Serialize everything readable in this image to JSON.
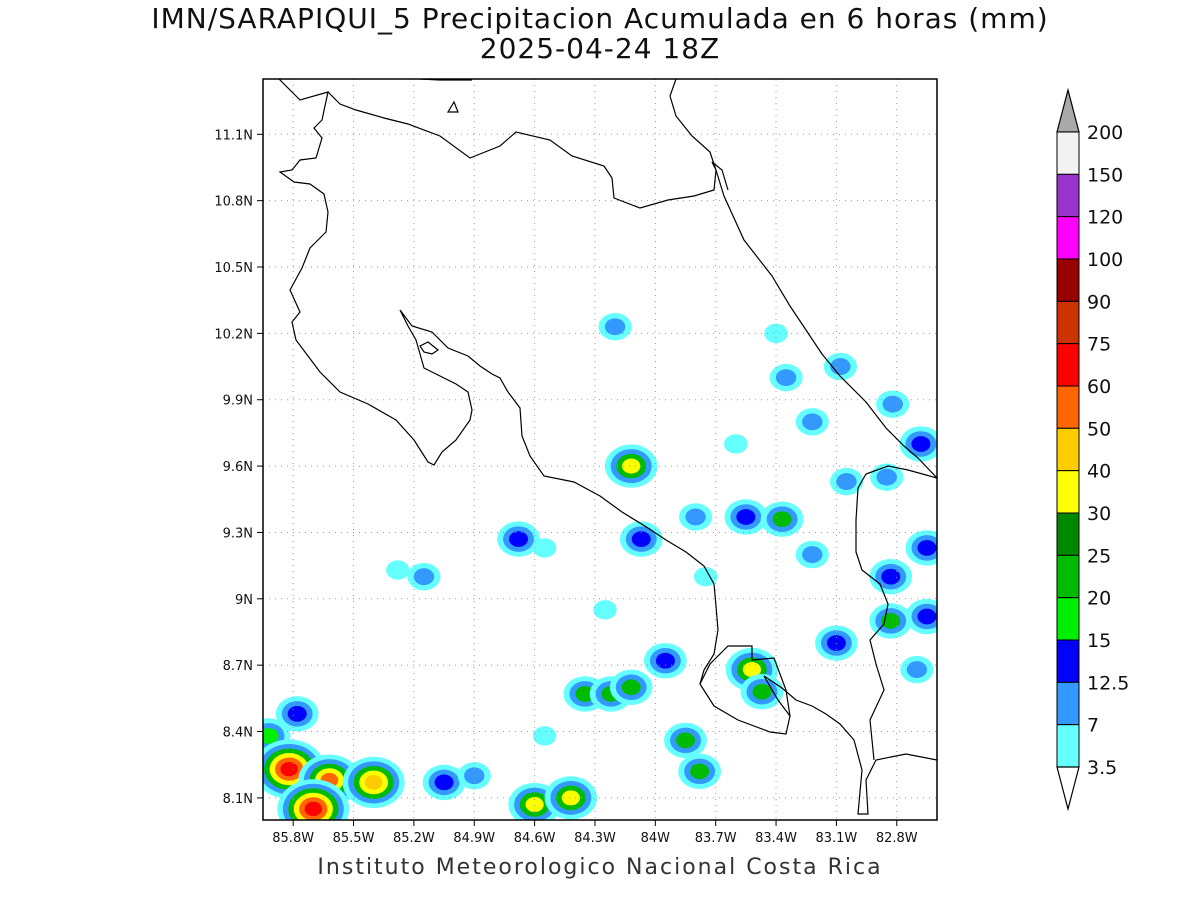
{
  "title": "IMN/SARAPIQUI_5 Precipitacion Acumulada en 6 horas (mm)",
  "subtitle": "2025-04-24 18Z",
  "footer": "Instituto Meteorologico Nacional Costa Rica",
  "map": {
    "lon_range": [
      -85.95,
      -82.6
    ],
    "lat_range": [
      8.0,
      11.35
    ],
    "lon_ticks": [
      "85.8W",
      "85.5W",
      "85.2W",
      "84.9W",
      "84.6W",
      "84.3W",
      "84W",
      "83.7W",
      "83.4W",
      "83.1W",
      "82.8W"
    ],
    "lat_ticks": [
      "11.1N",
      "10.8N",
      "10.5N",
      "10.2N",
      "9.9N",
      "9.6N",
      "9.3N",
      "9N",
      "8.7N",
      "8.4N",
      "8.1N"
    ],
    "grid": "dotted"
  },
  "legend": {
    "labels": [
      "200",
      "150",
      "120",
      "100",
      "90",
      "75",
      "60",
      "50",
      "40",
      "30",
      "25",
      "20",
      "15",
      "12.5",
      "7",
      "3.5"
    ],
    "colors": [
      "#f2f2f2",
      "#9933cc",
      "#ff00ff",
      "#990000",
      "#cc3300",
      "#ff0000",
      "#ff6600",
      "#ffcc00",
      "#ffff00",
      "#008800",
      "#00bb00",
      "#00ee00",
      "#0000ff",
      "#3399ff",
      "#66ffff"
    ],
    "over_color": "#a9a9a9",
    "under_color": "#ffffff"
  },
  "rain_cells": [
    {
      "lon": -85.92,
      "lat": 8.38,
      "levels": [
        "#66ffff",
        "#3399ff",
        "#00ee00"
      ]
    },
    {
      "lon": -85.82,
      "lat": 8.23,
      "levels": [
        "#66ffff",
        "#3399ff",
        "#00bb00",
        "#ffff00",
        "#ff6600",
        "#ff0000"
      ]
    },
    {
      "lon": -85.62,
      "lat": 8.18,
      "levels": [
        "#66ffff",
        "#3399ff",
        "#00bb00",
        "#ffff00",
        "#ff6600"
      ]
    },
    {
      "lon": -85.7,
      "lat": 8.05,
      "levels": [
        "#66ffff",
        "#3399ff",
        "#00bb00",
        "#ffff00",
        "#ff6600",
        "#ff0000"
      ]
    },
    {
      "lon": -85.4,
      "lat": 8.17,
      "levels": [
        "#66ffff",
        "#3399ff",
        "#00bb00",
        "#ffff00",
        "#ffcc00"
      ]
    },
    {
      "lon": -85.78,
      "lat": 8.48,
      "levels": [
        "#66ffff",
        "#3399ff",
        "#0000ff"
      ]
    },
    {
      "lon": -85.05,
      "lat": 8.17,
      "levels": [
        "#66ffff",
        "#3399ff",
        "#0000ff"
      ]
    },
    {
      "lon": -84.9,
      "lat": 8.2,
      "levels": [
        "#66ffff",
        "#3399ff"
      ]
    },
    {
      "lon": -84.6,
      "lat": 8.07,
      "levels": [
        "#66ffff",
        "#3399ff",
        "#00bb00",
        "#ffff00"
      ]
    },
    {
      "lon": -84.42,
      "lat": 8.1,
      "levels": [
        "#66ffff",
        "#3399ff",
        "#00bb00",
        "#ffff00"
      ]
    },
    {
      "lon": -84.35,
      "lat": 8.57,
      "levels": [
        "#66ffff",
        "#3399ff",
        "#00bb00"
      ]
    },
    {
      "lon": -84.22,
      "lat": 8.57,
      "levels": [
        "#66ffff",
        "#3399ff",
        "#00bb00"
      ]
    },
    {
      "lon": -84.12,
      "lat": 8.6,
      "levels": [
        "#66ffff",
        "#3399ff",
        "#00bb00"
      ]
    },
    {
      "lon": -83.85,
      "lat": 8.36,
      "levels": [
        "#66ffff",
        "#3399ff",
        "#00bb00"
      ]
    },
    {
      "lon": -83.78,
      "lat": 8.22,
      "levels": [
        "#66ffff",
        "#3399ff",
        "#00bb00"
      ]
    },
    {
      "lon": -83.95,
      "lat": 8.72,
      "levels": [
        "#66ffff",
        "#3399ff",
        "#0000ff"
      ]
    },
    {
      "lon": -83.52,
      "lat": 8.68,
      "levels": [
        "#66ffff",
        "#3399ff",
        "#00bb00",
        "#ffff00"
      ]
    },
    {
      "lon": -83.47,
      "lat": 8.58,
      "levels": [
        "#66ffff",
        "#3399ff",
        "#00bb00"
      ]
    },
    {
      "lon": -84.12,
      "lat": 9.6,
      "levels": [
        "#66ffff",
        "#3399ff",
        "#00bb00",
        "#ffff00"
      ]
    },
    {
      "lon": -83.55,
      "lat": 9.37,
      "levels": [
        "#66ffff",
        "#3399ff",
        "#0000ff"
      ]
    },
    {
      "lon": -83.37,
      "lat": 9.36,
      "levels": [
        "#66ffff",
        "#3399ff",
        "#00bb00"
      ]
    },
    {
      "lon": -84.07,
      "lat": 9.27,
      "levels": [
        "#66ffff",
        "#3399ff",
        "#0000ff"
      ]
    },
    {
      "lon": -83.8,
      "lat": 9.37,
      "levels": [
        "#66ffff",
        "#3399ff"
      ]
    },
    {
      "lon": -82.82,
      "lat": 9.88,
      "levels": [
        "#66ffff",
        "#3399ff"
      ]
    },
    {
      "lon": -82.68,
      "lat": 9.7,
      "levels": [
        "#66ffff",
        "#3399ff",
        "#0000ff"
      ]
    },
    {
      "lon": -83.08,
      "lat": 10.05,
      "levels": [
        "#66ffff",
        "#3399ff"
      ]
    },
    {
      "lon": -83.35,
      "lat": 10.0,
      "levels": [
        "#66ffff",
        "#3399ff"
      ]
    },
    {
      "lon": -82.83,
      "lat": 8.9,
      "levels": [
        "#66ffff",
        "#3399ff",
        "#00bb00"
      ]
    },
    {
      "lon": -82.83,
      "lat": 9.1,
      "levels": [
        "#66ffff",
        "#3399ff",
        "#0000ff"
      ]
    },
    {
      "lon": -82.65,
      "lat": 9.23,
      "levels": [
        "#66ffff",
        "#3399ff",
        "#0000ff"
      ]
    },
    {
      "lon": -82.65,
      "lat": 8.92,
      "levels": [
        "#66ffff",
        "#3399ff",
        "#0000ff"
      ]
    },
    {
      "lon": -82.7,
      "lat": 8.68,
      "levels": [
        "#66ffff",
        "#3399ff"
      ]
    },
    {
      "lon": -83.1,
      "lat": 8.8,
      "levels": [
        "#66ffff",
        "#3399ff",
        "#0000ff"
      ]
    },
    {
      "lon": -84.68,
      "lat": 9.27,
      "levels": [
        "#66ffff",
        "#3399ff",
        "#0000ff"
      ]
    },
    {
      "lon": -85.15,
      "lat": 9.1,
      "levels": [
        "#66ffff",
        "#3399ff"
      ]
    },
    {
      "lon": -84.55,
      "lat": 8.38,
      "levels": [
        "#66ffff"
      ]
    },
    {
      "lon": -84.2,
      "lat": 10.23,
      "levels": [
        "#66ffff",
        "#3399ff"
      ]
    },
    {
      "lon": -83.05,
      "lat": 9.53,
      "levels": [
        "#66ffff",
        "#3399ff"
      ]
    },
    {
      "lon": -82.85,
      "lat": 9.55,
      "levels": [
        "#66ffff",
        "#3399ff"
      ]
    },
    {
      "lon": -83.22,
      "lat": 9.8,
      "levels": [
        "#66ffff",
        "#3399ff"
      ]
    },
    {
      "lon": -83.6,
      "lat": 9.7,
      "levels": [
        "#66ffff"
      ]
    },
    {
      "lon": -83.4,
      "lat": 10.2,
      "levels": [
        "#66ffff"
      ]
    },
    {
      "lon": -85.28,
      "lat": 9.13,
      "levels": [
        "#66ffff"
      ]
    },
    {
      "lon": -84.55,
      "lat": 9.23,
      "levels": [
        "#66ffff"
      ]
    },
    {
      "lon": -84.25,
      "lat": 8.95,
      "levels": [
        "#66ffff"
      ]
    },
    {
      "lon": -83.22,
      "lat": 9.2,
      "levels": [
        "#66ffff",
        "#3399ff"
      ]
    },
    {
      "lon": -83.75,
      "lat": 9.1,
      "levels": [
        "#66ffff"
      ]
    }
  ]
}
